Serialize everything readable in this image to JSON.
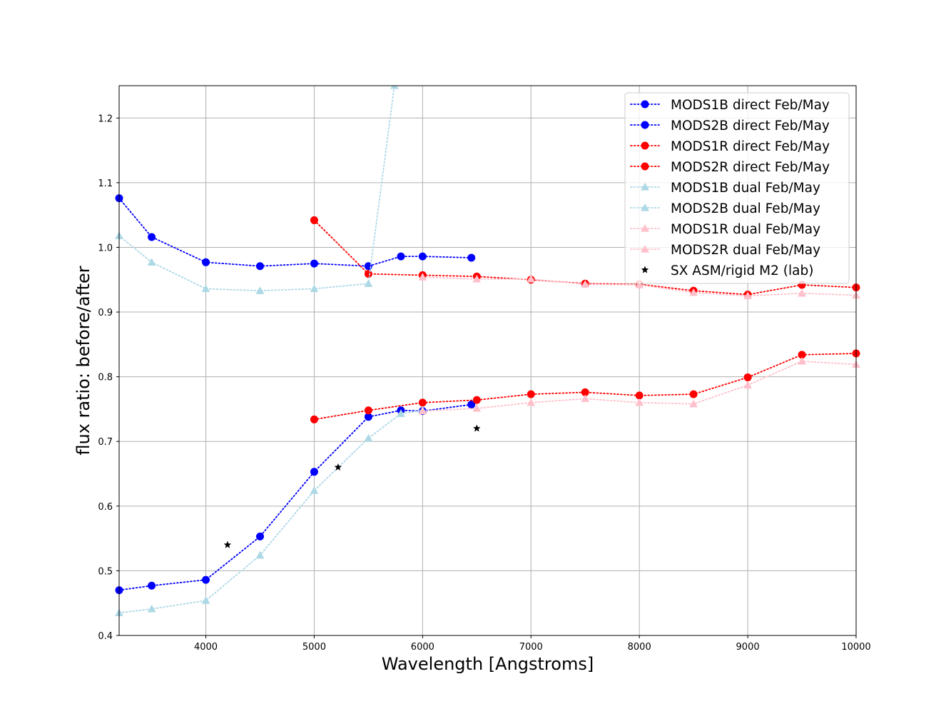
{
  "chart_data": {
    "type": "line",
    "title": "",
    "xlabel": "Wavelength [Angstroms]",
    "ylabel": "flux ratio: before/after",
    "xlim": [
      3200,
      10000
    ],
    "ylim": [
      0.4,
      1.25
    ],
    "xticks": [
      4000,
      5000,
      6000,
      7000,
      8000,
      9000,
      10000
    ],
    "yticks": [
      0.4,
      0.5,
      0.6,
      0.7,
      0.8,
      0.9,
      1.0,
      1.1,
      1.2
    ],
    "xtick_labels": [
      "4000",
      "5000",
      "6000",
      "7000",
      "8000",
      "9000",
      "10000"
    ],
    "ytick_labels": [
      "0.4",
      "0.5",
      "0.6",
      "0.7",
      "0.8",
      "0.9",
      "1.0",
      "1.1",
      "1.2"
    ],
    "grid": true,
    "legend_position": "top-right",
    "series": [
      {
        "name": "MODS1B direct Feb/May",
        "color": "#0000ff",
        "marker": "circle",
        "line": "dotted",
        "x": [
          3200,
          3500,
          4000,
          4500,
          5000,
          5500,
          5800,
          6000,
          6450
        ],
        "y": [
          1.076,
          1.016,
          0.977,
          0.971,
          0.975,
          0.971,
          0.986,
          0.986,
          0.984
        ]
      },
      {
        "name": "MODS2B direct Feb/May",
        "color": "#0000ff",
        "marker": "circle",
        "line": "dotted",
        "x": [
          3200,
          3500,
          4000,
          4500,
          5000,
          5500,
          5800,
          6000,
          6450
        ],
        "y": [
          0.47,
          0.477,
          0.486,
          0.553,
          0.653,
          0.738,
          0.748,
          0.747,
          0.757
        ]
      },
      {
        "name": "MODS1R direct Feb/May",
        "color": "#ff0000",
        "marker": "circle",
        "line": "dotted",
        "x": [
          5000,
          5500,
          6000,
          6500,
          7000,
          7500,
          8000,
          8500,
          9000,
          9500,
          10000
        ],
        "y": [
          1.042,
          0.959,
          0.957,
          0.955,
          0.95,
          0.944,
          0.943,
          0.933,
          0.927,
          0.942,
          0.938
        ]
      },
      {
        "name": "MODS2R direct Feb/May",
        "color": "#ff0000",
        "marker": "circle",
        "line": "dotted",
        "x": [
          5000,
          5500,
          6000,
          6500,
          7000,
          7500,
          8000,
          8500,
          9000,
          9500,
          10000
        ],
        "y": [
          0.734,
          0.748,
          0.76,
          0.764,
          0.773,
          0.776,
          0.771,
          0.773,
          0.799,
          0.834,
          0.836
        ]
      },
      {
        "name": "MODS1B dual Feb/May",
        "color": "#add8e6",
        "marker": "triangle",
        "line": "dotted",
        "x": [
          3200,
          3500,
          4000,
          4500,
          5000,
          5500,
          5740
        ],
        "y": [
          1.018,
          0.977,
          0.936,
          0.933,
          0.936,
          0.944,
          1.25
        ]
      },
      {
        "name": "MODS2B dual Feb/May",
        "color": "#add8e6",
        "marker": "triangle",
        "line": "dotted",
        "x": [
          3200,
          3500,
          4000,
          4500,
          5000,
          5500,
          5800,
          6000
        ],
        "y": [
          0.435,
          0.441,
          0.454,
          0.524,
          0.624,
          0.705,
          0.743,
          0.748
        ]
      },
      {
        "name": "MODS1R dual Feb/May",
        "color": "#ffc0cb",
        "marker": "triangle",
        "line": "dotted",
        "x": [
          6000,
          6500,
          7000,
          7500,
          8000,
          8500,
          9000,
          9500,
          10000
        ],
        "y": [
          0.954,
          0.951,
          0.951,
          0.943,
          0.942,
          0.93,
          0.925,
          0.929,
          0.926
        ]
      },
      {
        "name": "MODS2R dual Feb/May",
        "color": "#ffc0cb",
        "marker": "triangle",
        "line": "dotted",
        "x": [
          6000,
          6500,
          7000,
          7500,
          8000,
          8500,
          9000,
          9500,
          10000
        ],
        "y": [
          0.747,
          0.751,
          0.76,
          0.766,
          0.76,
          0.758,
          0.787,
          0.824,
          0.819
        ]
      },
      {
        "name": "SX ASM/rigid M2 (lab)",
        "color": "#000000",
        "marker": "star",
        "line": "none",
        "x": [
          4200,
          5220,
          6500
        ],
        "y": [
          0.54,
          0.66,
          0.72
        ]
      }
    ]
  }
}
